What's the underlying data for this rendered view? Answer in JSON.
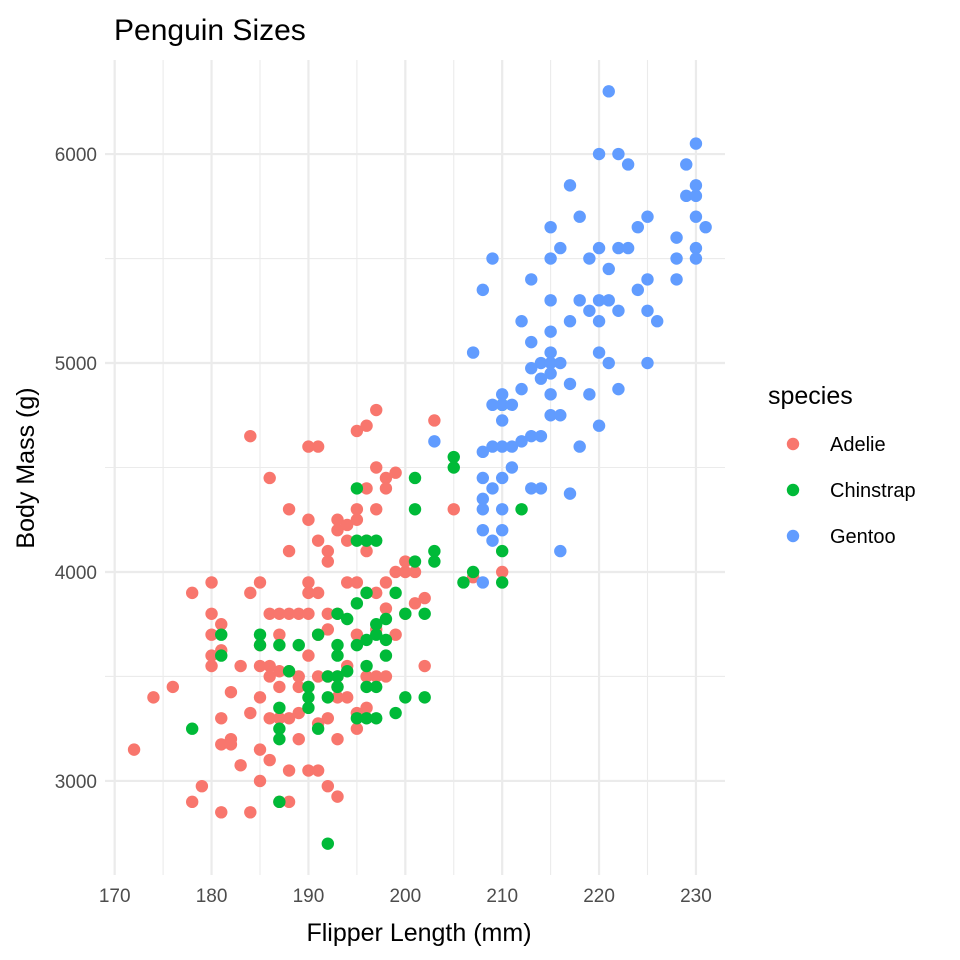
{
  "chart_data": {
    "type": "scatter",
    "title": "Penguin Sizes",
    "xlabel": "Flipper Length (mm)",
    "ylabel": "Body Mass (g)",
    "xlim": [
      169,
      233
    ],
    "ylim": [
      2550,
      6450
    ],
    "x_ticks": [
      170,
      180,
      190,
      200,
      210,
      220,
      230
    ],
    "y_ticks": [
      3000,
      4000,
      5000,
      6000
    ],
    "grid": true,
    "legend": {
      "title": "species",
      "position": "right"
    },
    "series": [
      {
        "name": "Adelie",
        "color": "#F8766D",
        "points": [
          [
            172,
            3150
          ],
          [
            174,
            3400
          ],
          [
            176,
            3450
          ],
          [
            178,
            3900
          ],
          [
            178,
            2900
          ],
          [
            179,
            2975
          ],
          [
            180,
            3950
          ],
          [
            180,
            3800
          ],
          [
            180,
            3700
          ],
          [
            180,
            3600
          ],
          [
            180,
            3550
          ],
          [
            181,
            3750
          ],
          [
            181,
            3625
          ],
          [
            181,
            3300
          ],
          [
            181,
            3175
          ],
          [
            181,
            2850
          ],
          [
            182,
            3425
          ],
          [
            182,
            3200
          ],
          [
            182,
            3175
          ],
          [
            183,
            3550
          ],
          [
            183,
            3075
          ],
          [
            184,
            4650
          ],
          [
            184,
            3900
          ],
          [
            184,
            3325
          ],
          [
            184,
            2850
          ],
          [
            185,
            3950
          ],
          [
            185,
            3650
          ],
          [
            185,
            3550
          ],
          [
            185,
            3400
          ],
          [
            185,
            3150
          ],
          [
            185,
            3000
          ],
          [
            186,
            4450
          ],
          [
            186,
            3800
          ],
          [
            186,
            3550
          ],
          [
            186,
            3500
          ],
          [
            186,
            3300
          ],
          [
            186,
            3100
          ],
          [
            187,
            3800
          ],
          [
            187,
            3700
          ],
          [
            187,
            3525
          ],
          [
            187,
            3450
          ],
          [
            187,
            3300
          ],
          [
            187,
            2900
          ],
          [
            188,
            4300
          ],
          [
            188,
            4100
          ],
          [
            188,
            3800
          ],
          [
            188,
            3525
          ],
          [
            188,
            3300
          ],
          [
            188,
            3050
          ],
          [
            188,
            2900
          ],
          [
            189,
            3800
          ],
          [
            189,
            3500
          ],
          [
            189,
            3450
          ],
          [
            189,
            3325
          ],
          [
            189,
            3200
          ],
          [
            190,
            4600
          ],
          [
            190,
            4250
          ],
          [
            190,
            3950
          ],
          [
            190,
            3900
          ],
          [
            190,
            3800
          ],
          [
            190,
            3600
          ],
          [
            190,
            3450
          ],
          [
            190,
            3050
          ],
          [
            191,
            4600
          ],
          [
            191,
            4150
          ],
          [
            191,
            3900
          ],
          [
            191,
            3700
          ],
          [
            191,
            3500
          ],
          [
            191,
            3275
          ],
          [
            191,
            3050
          ],
          [
            192,
            4100
          ],
          [
            192,
            4050
          ],
          [
            192,
            3800
          ],
          [
            192,
            3725
          ],
          [
            192,
            3500
          ],
          [
            192,
            3300
          ],
          [
            192,
            2975
          ],
          [
            193,
            4250
          ],
          [
            193,
            4200
          ],
          [
            193,
            3800
          ],
          [
            193,
            3500
          ],
          [
            193,
            3450
          ],
          [
            193,
            3400
          ],
          [
            193,
            3200
          ],
          [
            193,
            2925
          ],
          [
            194,
            4225
          ],
          [
            194,
            4150
          ],
          [
            194,
            3950
          ],
          [
            194,
            3550
          ],
          [
            194,
            3400
          ],
          [
            195,
            4675
          ],
          [
            195,
            4300
          ],
          [
            195,
            4250
          ],
          [
            195,
            3950
          ],
          [
            195,
            3700
          ],
          [
            195,
            3325
          ],
          [
            195,
            3250
          ],
          [
            196,
            4700
          ],
          [
            196,
            4400
          ],
          [
            196,
            4150
          ],
          [
            196,
            4100
          ],
          [
            196,
            3900
          ],
          [
            196,
            3500
          ],
          [
            196,
            3350
          ],
          [
            197,
            4775
          ],
          [
            197,
            4500
          ],
          [
            197,
            4300
          ],
          [
            197,
            3900
          ],
          [
            197,
            3725
          ],
          [
            197,
            3500
          ],
          [
            198,
            4450
          ],
          [
            198,
            4400
          ],
          [
            198,
            3950
          ],
          [
            198,
            3825
          ],
          [
            198,
            3500
          ],
          [
            199,
            4475
          ],
          [
            199,
            4000
          ],
          [
            199,
            3700
          ],
          [
            200,
            4050
          ],
          [
            200,
            4000
          ],
          [
            200,
            3800
          ],
          [
            201,
            4000
          ],
          [
            201,
            3850
          ],
          [
            202,
            3875
          ],
          [
            202,
            3550
          ],
          [
            203,
            4725
          ],
          [
            205,
            4300
          ],
          [
            207,
            3975
          ],
          [
            210,
            4000
          ]
        ]
      },
      {
        "name": "Chinstrap",
        "color": "#00BA38",
        "points": [
          [
            178,
            3250
          ],
          [
            181,
            3700
          ],
          [
            181,
            3600
          ],
          [
            185,
            3700
          ],
          [
            185,
            3650
          ],
          [
            187,
            3650
          ],
          [
            187,
            3350
          ],
          [
            187,
            3250
          ],
          [
            187,
            3200
          ],
          [
            187,
            2900
          ],
          [
            188,
            3525
          ],
          [
            189,
            3650
          ],
          [
            190,
            3450
          ],
          [
            190,
            3400
          ],
          [
            190,
            3350
          ],
          [
            191,
            3700
          ],
          [
            191,
            3250
          ],
          [
            192,
            3500
          ],
          [
            192,
            3400
          ],
          [
            192,
            2700
          ],
          [
            193,
            3800
          ],
          [
            193,
            3650
          ],
          [
            193,
            3600
          ],
          [
            193,
            3500
          ],
          [
            193,
            3450
          ],
          [
            194,
            3775
          ],
          [
            194,
            3525
          ],
          [
            195,
            4400
          ],
          [
            195,
            4150
          ],
          [
            195,
            3850
          ],
          [
            195,
            3650
          ],
          [
            195,
            3300
          ],
          [
            196,
            4150
          ],
          [
            196,
            3900
          ],
          [
            196,
            3675
          ],
          [
            196,
            3550
          ],
          [
            196,
            3450
          ],
          [
            196,
            3300
          ],
          [
            197,
            4150
          ],
          [
            197,
            3750
          ],
          [
            197,
            3700
          ],
          [
            197,
            3450
          ],
          [
            197,
            3300
          ],
          [
            198,
            3775
          ],
          [
            198,
            3675
          ],
          [
            198,
            3600
          ],
          [
            199,
            3900
          ],
          [
            199,
            3325
          ],
          [
            200,
            3800
          ],
          [
            200,
            3400
          ],
          [
            201,
            4450
          ],
          [
            201,
            4300
          ],
          [
            201,
            4050
          ],
          [
            202,
            3800
          ],
          [
            202,
            3400
          ],
          [
            203,
            4100
          ],
          [
            203,
            4050
          ],
          [
            205,
            4550
          ],
          [
            205,
            4500
          ],
          [
            206,
            3950
          ],
          [
            207,
            4000
          ],
          [
            210,
            4800
          ],
          [
            210,
            4100
          ],
          [
            210,
            3950
          ],
          [
            212,
            4300
          ]
        ]
      },
      {
        "name": "Gentoo",
        "color": "#619CFF",
        "points": [
          [
            203,
            4625
          ],
          [
            207,
            5050
          ],
          [
            208,
            5350
          ],
          [
            208,
            4575
          ],
          [
            208,
            4450
          ],
          [
            208,
            4350
          ],
          [
            208,
            4300
          ],
          [
            208,
            4200
          ],
          [
            208,
            3950
          ],
          [
            209,
            5500
          ],
          [
            209,
            4800
          ],
          [
            209,
            4600
          ],
          [
            209,
            4400
          ],
          [
            209,
            4150
          ],
          [
            210,
            4850
          ],
          [
            210,
            4800
          ],
          [
            210,
            4725
          ],
          [
            210,
            4600
          ],
          [
            210,
            4450
          ],
          [
            210,
            4300
          ],
          [
            210,
            4200
          ],
          [
            211,
            4800
          ],
          [
            211,
            4600
          ],
          [
            211,
            4500
          ],
          [
            212,
            5200
          ],
          [
            212,
            4875
          ],
          [
            212,
            4625
          ],
          [
            213,
            5400
          ],
          [
            213,
            5100
          ],
          [
            213,
            4975
          ],
          [
            213,
            4650
          ],
          [
            213,
            4400
          ],
          [
            214,
            5000
          ],
          [
            214,
            4925
          ],
          [
            214,
            4650
          ],
          [
            214,
            4400
          ],
          [
            215,
            5650
          ],
          [
            215,
            5500
          ],
          [
            215,
            5300
          ],
          [
            215,
            5150
          ],
          [
            215,
            5050
          ],
          [
            215,
            5000
          ],
          [
            215,
            4950
          ],
          [
            215,
            4850
          ],
          [
            215,
            4750
          ],
          [
            216,
            5550
          ],
          [
            216,
            5000
          ],
          [
            216,
            4750
          ],
          [
            216,
            4100
          ],
          [
            217,
            5850
          ],
          [
            217,
            5200
          ],
          [
            217,
            4900
          ],
          [
            217,
            4375
          ],
          [
            218,
            5700
          ],
          [
            218,
            5300
          ],
          [
            218,
            4600
          ],
          [
            219,
            5500
          ],
          [
            219,
            5250
          ],
          [
            219,
            4850
          ],
          [
            220,
            6000
          ],
          [
            220,
            5550
          ],
          [
            220,
            5300
          ],
          [
            220,
            5200
          ],
          [
            220,
            5050
          ],
          [
            220,
            4700
          ],
          [
            221,
            6300
          ],
          [
            221,
            5450
          ],
          [
            221,
            5300
          ],
          [
            221,
            5000
          ],
          [
            222,
            6000
          ],
          [
            222,
            5550
          ],
          [
            222,
            5250
          ],
          [
            222,
            4875
          ],
          [
            223,
            5950
          ],
          [
            223,
            5550
          ],
          [
            224,
            5650
          ],
          [
            224,
            5350
          ],
          [
            225,
            5700
          ],
          [
            225,
            5400
          ],
          [
            225,
            5250
          ],
          [
            225,
            5000
          ],
          [
            226,
            5200
          ],
          [
            228,
            5600
          ],
          [
            228,
            5500
          ],
          [
            228,
            5400
          ],
          [
            229,
            5950
          ],
          [
            229,
            5800
          ],
          [
            230,
            6050
          ],
          [
            230,
            5850
          ],
          [
            230,
            5800
          ],
          [
            230,
            5700
          ],
          [
            230,
            5550
          ],
          [
            230,
            5500
          ],
          [
            231,
            5650
          ]
        ]
      }
    ]
  }
}
